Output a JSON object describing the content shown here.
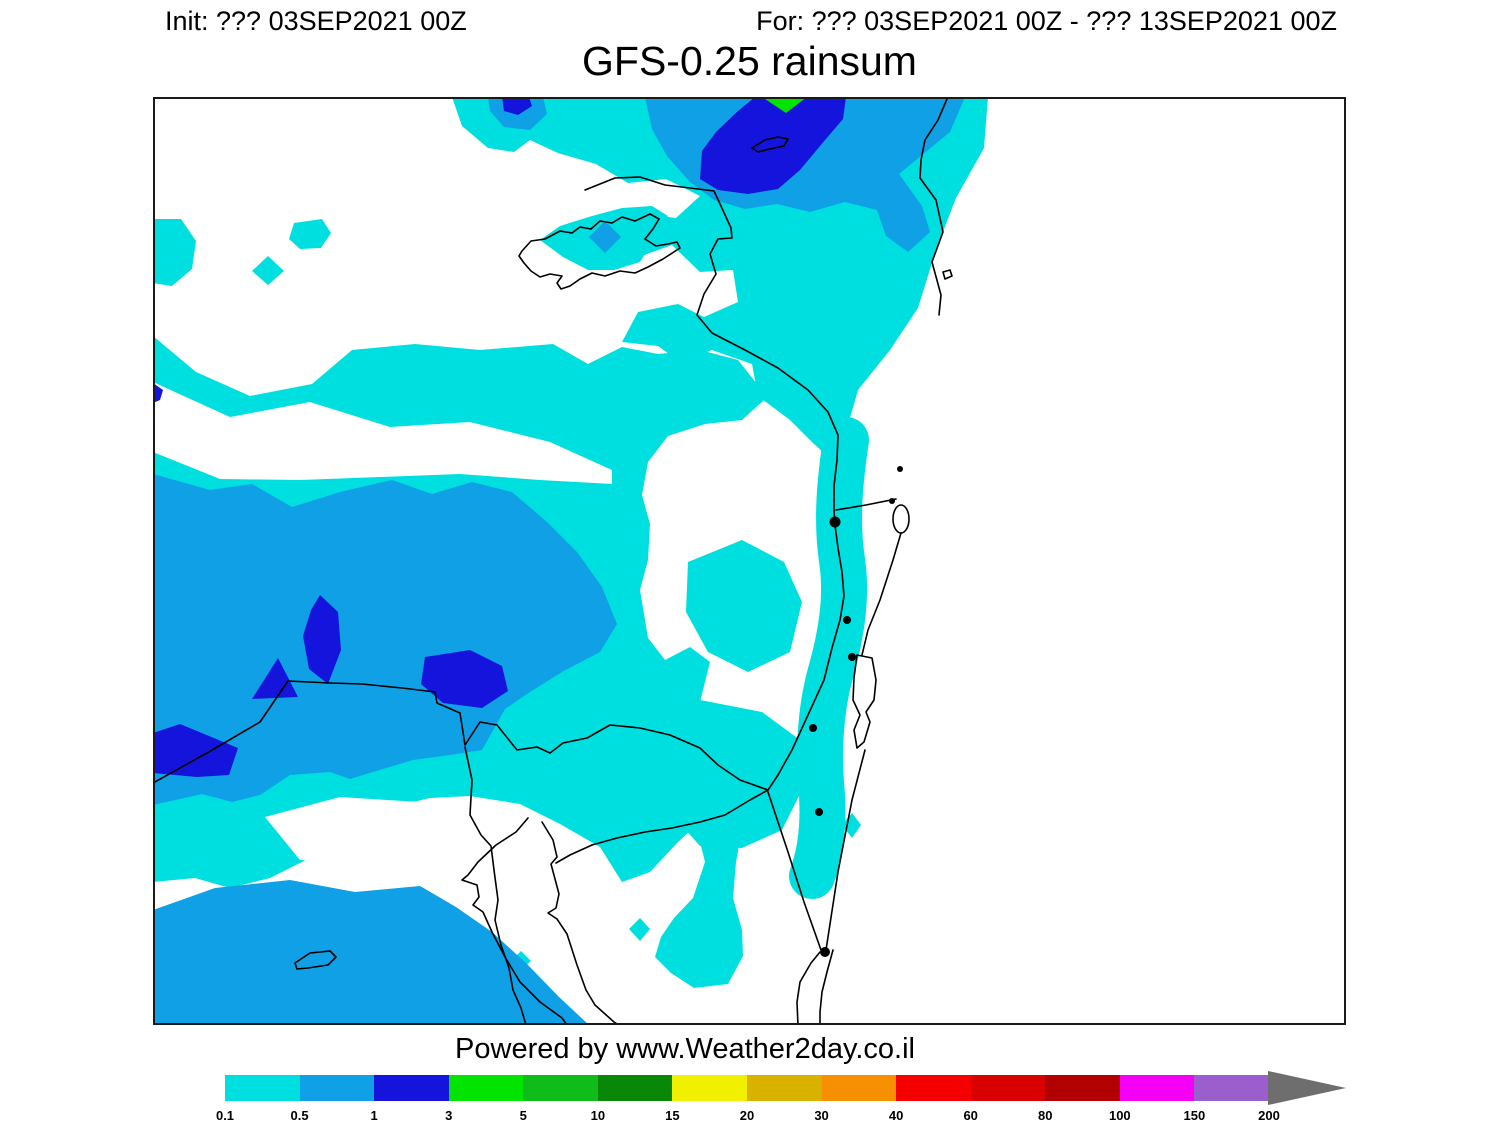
{
  "header": {
    "init": "Init: ??? 03SEP2021 00Z",
    "valid": "For: ??? 03SEP2021 00Z - ??? 13SEP2021 00Z"
  },
  "title": "GFS-0.25 rainsum",
  "credit": "Powered by www.Weather2day.co.il",
  "legend": {
    "unit_ticks": [
      "0.1",
      "0.5",
      "1",
      "3",
      "5",
      "10",
      "15",
      "20",
      "30",
      "40",
      "60",
      "80",
      "100",
      "150",
      "200"
    ],
    "colors": [
      "#00DFDF",
      "#0FA0E6",
      "#1414DC",
      "#00E400",
      "#10BC19",
      "#088708",
      "#F0F000",
      "#D9B200",
      "#F79000",
      "#F50000",
      "#D90000",
      "#B20000",
      "#F500F5",
      "#9A5FCC"
    ],
    "overflow_color": "#6E6E6E"
  },
  "map": {
    "background_color": "#FFFFFF",
    "outline_color": "#000000",
    "city_dot_color": "#000000",
    "rain_colors": {
      "light": "#00DFDF",
      "moderate": "#0FA0E6",
      "heavy": "#1414DC",
      "intense": "#00E400"
    }
  }
}
